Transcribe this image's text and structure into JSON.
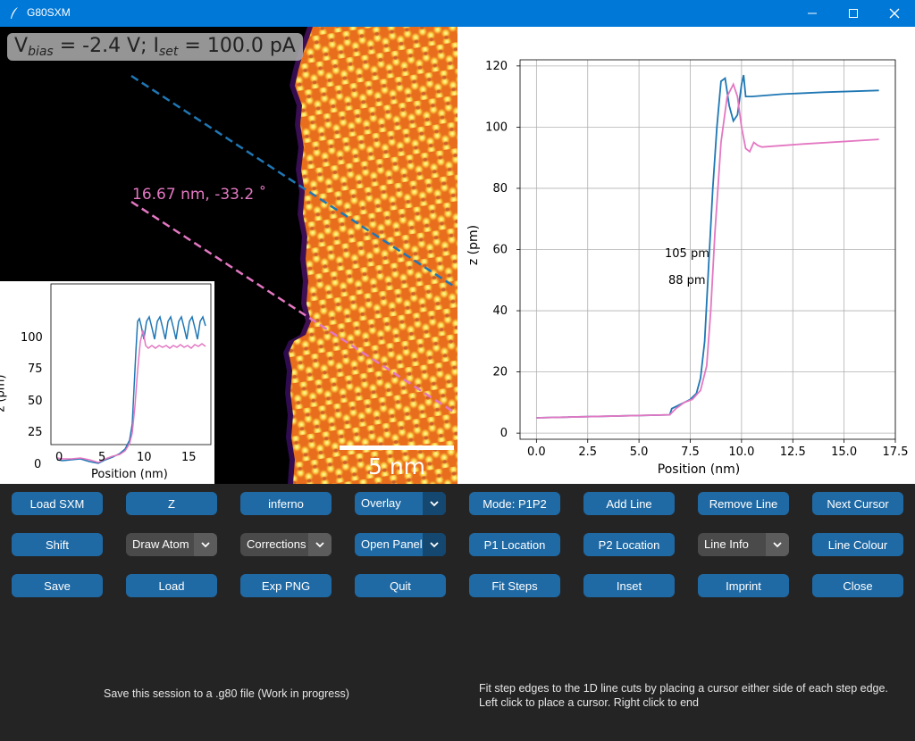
{
  "window": {
    "title": "G80SXM",
    "accent_color": "#0078d7"
  },
  "image_pane": {
    "bias_label_parts": [
      "V",
      "bias",
      " = -2.4 V; I",
      "set",
      " = 100.0 pA"
    ],
    "scale_bar_label": "5 nm",
    "line_label": "16.67 nm, -33.2 ˚",
    "colormap": "inferno",
    "line_colors": [
      "#1f77b4",
      "#e377c2"
    ],
    "inset_plot": {
      "xlabel": "Position (nm)",
      "ylabel": "z (pm)",
      "xticks": [
        "0",
        "5",
        "10",
        "15"
      ],
      "yticks": [
        "0",
        "25",
        "50",
        "75",
        "100"
      ]
    }
  },
  "chart_data": {
    "type": "line",
    "xlabel": "Position (nm)",
    "ylabel": "z (pm)",
    "xlim": [
      -0.8,
      17.5
    ],
    "ylim": [
      -2,
      122
    ],
    "xticks": [
      "0.0",
      "2.5",
      "5.0",
      "7.5",
      "10.0",
      "12.5",
      "15.0",
      "17.5"
    ],
    "yticks": [
      "0",
      "20",
      "40",
      "60",
      "80",
      "100",
      "120"
    ],
    "grid": true,
    "annotations": [
      "105 pm",
      "88 pm"
    ],
    "series": [
      {
        "color": "#1f77b4",
        "x": [
          0,
          6.5,
          6.6,
          6.9,
          7.2,
          7.5,
          7.8,
          8.0,
          8.2,
          8.4,
          8.6,
          8.8,
          9.0,
          9.2,
          9.4,
          9.6,
          9.8,
          10.0,
          10.1,
          10.2,
          10.3,
          10.4,
          10.5,
          12.0,
          14.0,
          16.7
        ],
        "y": [
          5,
          6,
          8,
          9,
          10,
          11,
          13,
          18,
          30,
          55,
          80,
          100,
          115,
          116,
          107,
          102,
          104,
          114,
          117,
          110,
          110,
          110,
          110,
          110.8,
          111.4,
          112
        ]
      },
      {
        "color": "#e377c2",
        "x": [
          0,
          6.5,
          6.8,
          7.2,
          7.6,
          8.0,
          8.3,
          8.5,
          8.7,
          9.0,
          9.3,
          9.6,
          9.8,
          10.0,
          10.2,
          10.4,
          10.6,
          10.8,
          11.0,
          13.0,
          16.7
        ],
        "y": [
          5,
          6,
          8,
          10,
          11,
          14,
          22,
          40,
          65,
          95,
          110,
          114,
          110,
          100,
          93,
          92,
          95,
          94,
          93.5,
          94.5,
          96
        ]
      }
    ]
  },
  "controls": {
    "rows": [
      [
        {
          "kind": "button",
          "label": "Load SXM"
        },
        {
          "kind": "button",
          "label": "Z"
        },
        {
          "kind": "button",
          "label": "inferno"
        },
        {
          "kind": "combo",
          "label": "Overlay",
          "style": "blue"
        },
        {
          "kind": "button",
          "label": "Mode: P1P2"
        },
        {
          "kind": "button",
          "label": "Add Line"
        },
        {
          "kind": "button",
          "label": "Remove Line"
        },
        {
          "kind": "button",
          "label": "Next Cursor"
        }
      ],
      [
        {
          "kind": "button",
          "label": "Shift"
        },
        {
          "kind": "combo",
          "label": "Draw Atom",
          "style": "grey"
        },
        {
          "kind": "combo",
          "label": "Corrections",
          "style": "grey"
        },
        {
          "kind": "combo",
          "label": "Open Panel",
          "style": "blue"
        },
        {
          "kind": "button",
          "label": "P1 Location"
        },
        {
          "kind": "button",
          "label": "P2 Location"
        },
        {
          "kind": "combo",
          "label": "Line Info",
          "style": "grey"
        },
        {
          "kind": "button",
          "label": "Line Colour"
        }
      ],
      [
        {
          "kind": "button",
          "label": "Save"
        },
        {
          "kind": "button",
          "label": "Load"
        },
        {
          "kind": "button",
          "label": "Exp PNG"
        },
        {
          "kind": "button",
          "label": "Quit"
        },
        {
          "kind": "button",
          "label": "Fit Steps"
        },
        {
          "kind": "button",
          "label": "Inset"
        },
        {
          "kind": "button",
          "label": "Imprint"
        },
        {
          "kind": "button",
          "label": "Close"
        }
      ]
    ],
    "status_left": "Save this session to a .g80 file (Work in progress)",
    "status_right_lines": [
      "Fit step edges to the 1D line cuts by placing a cursor either side of each step edge.",
      "Left click to place a cursor. Right click to end"
    ]
  }
}
